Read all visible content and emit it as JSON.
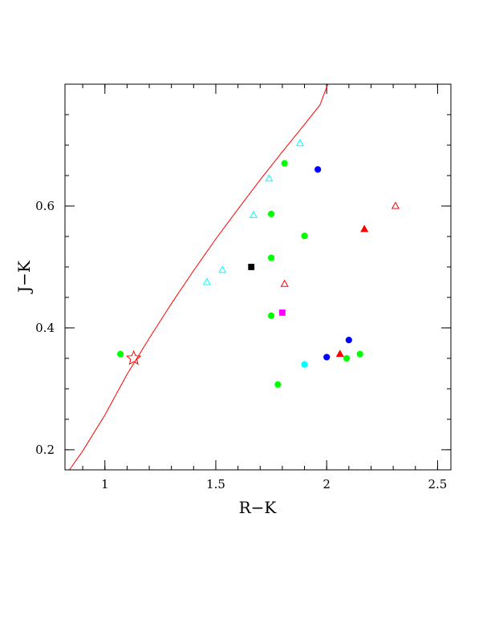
{
  "chart_data": {
    "type": "scatter",
    "title": "",
    "xlabel": "R−K",
    "ylabel": "J−K",
    "xlim": [
      0.82,
      2.56
    ],
    "ylim": [
      0.167,
      0.8
    ],
    "x_ticks": [
      {
        "value": 1,
        "label": "1"
      },
      {
        "value": 1.5,
        "label": "1.5"
      },
      {
        "value": 2,
        "label": "2"
      },
      {
        "value": 2.5,
        "label": "2.5"
      }
    ],
    "y_ticks": [
      {
        "value": 0.2,
        "label": "0.2"
      },
      {
        "value": 0.4,
        "label": "0.4"
      },
      {
        "value": 0.6,
        "label": "0.6"
      }
    ],
    "x_minor_step": 0.1,
    "y_minor_step": 0.05,
    "grid": false,
    "colors": {
      "green": "#00ff00",
      "blue": "#0000ff",
      "cyan": "#00ffff",
      "red": "#ff0000",
      "black": "#000000",
      "magenta": "#ff00ff"
    },
    "curve": {
      "color": "#ff0000",
      "points": [
        [
          0.84,
          0.167
        ],
        [
          0.9,
          0.198
        ],
        [
          1.0,
          0.257
        ],
        [
          1.1,
          0.324
        ],
        [
          1.2,
          0.383
        ],
        [
          1.3,
          0.44
        ],
        [
          1.4,
          0.494
        ],
        [
          1.5,
          0.546
        ],
        [
          1.6,
          0.595
        ],
        [
          1.7,
          0.643
        ],
        [
          1.8,
          0.689
        ],
        [
          1.9,
          0.734
        ],
        [
          1.97,
          0.766
        ],
        [
          2.005,
          0.8
        ]
      ]
    },
    "series": [
      {
        "marker": "circle",
        "color": "green",
        "filled": true,
        "x": [
          1.07,
          1.81,
          1.75,
          1.9,
          1.75,
          1.75,
          1.78,
          2.09,
          2.15
        ],
        "y": [
          0.357,
          0.67,
          0.587,
          0.551,
          0.515,
          0.42,
          0.307,
          0.35,
          0.357
        ]
      },
      {
        "marker": "circle",
        "color": "blue",
        "filled": true,
        "x": [
          1.96,
          2.1,
          2.0
        ],
        "y": [
          0.66,
          0.38,
          0.352
        ]
      },
      {
        "marker": "circle",
        "color": "cyan",
        "filled": true,
        "x": [
          1.9
        ],
        "y": [
          0.34
        ]
      },
      {
        "marker": "triangle",
        "color": "cyan",
        "filled": false,
        "x": [
          1.88,
          1.74,
          1.67,
          1.53,
          1.46
        ],
        "y": [
          0.703,
          0.645,
          0.585,
          0.495,
          0.475
        ]
      },
      {
        "marker": "triangle",
        "color": "red",
        "filled": false,
        "x": [
          2.31,
          1.81
        ],
        "y": [
          0.6,
          0.472
        ]
      },
      {
        "marker": "triangle",
        "color": "red",
        "filled": true,
        "x": [
          2.17,
          2.06
        ],
        "y": [
          0.562,
          0.357
        ]
      },
      {
        "marker": "square",
        "color": "black",
        "filled": true,
        "x": [
          1.66
        ],
        "y": [
          0.5
        ]
      },
      {
        "marker": "square",
        "color": "magenta",
        "filled": true,
        "x": [
          1.8
        ],
        "y": [
          0.425
        ]
      },
      {
        "marker": "star",
        "color": "red",
        "filled": false,
        "x": [
          1.13
        ],
        "y": [
          0.35
        ]
      }
    ]
  }
}
